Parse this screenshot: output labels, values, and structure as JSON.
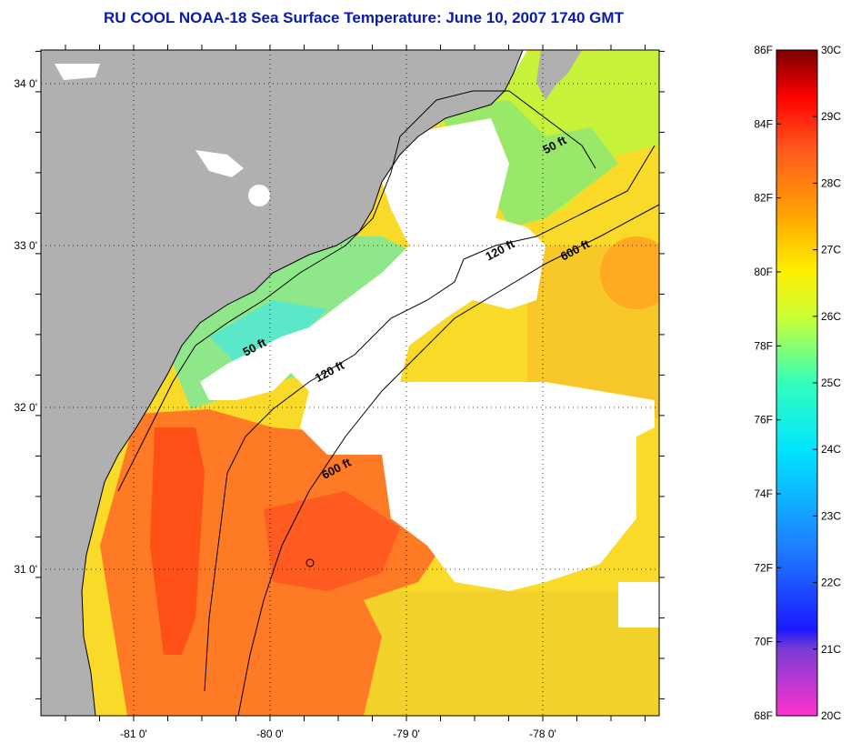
{
  "title": "RU COOL  NOAA-18  Sea Surface Temperature:  June 10, 2007 1740 GMT",
  "map": {
    "lon_ticks": [
      {
        "label": "-81 0'",
        "value": -81
      },
      {
        "label": "-80 0'",
        "value": -80
      },
      {
        "label": "-79 0'",
        "value": -79
      },
      {
        "label": "-78 0'",
        "value": -78
      }
    ],
    "lat_ticks": [
      {
        "label": "34 0'",
        "value": 34
      },
      {
        "label": "33 0'",
        "value": 33
      },
      {
        "label": "32 0'",
        "value": 32
      },
      {
        "label": "31 0'",
        "value": 31
      }
    ],
    "contour_labels": [
      {
        "text": "50 ft",
        "lon": -77.9,
        "lat": 33.6
      },
      {
        "text": "120 ft",
        "lon": -78.3,
        "lat": 32.95
      },
      {
        "text": "600 ft",
        "lon": -77.75,
        "lat": 32.95
      },
      {
        "text": "50 ft",
        "lon": -80.1,
        "lat": 32.35
      },
      {
        "text": "120 ft",
        "lon": -79.55,
        "lat": 32.2
      },
      {
        "text": "600 ft",
        "lon": -79.5,
        "lat": 31.6
      }
    ],
    "colors": {
      "land": "#b0b0b0",
      "cloud": "#ffffff",
      "contour": "#000000"
    }
  },
  "colorbar": {
    "fahrenheit_labels": [
      "86F",
      "84F",
      "82F",
      "80F",
      "78F",
      "76F",
      "74F",
      "72F",
      "70F",
      "68F"
    ],
    "celsius_labels": [
      "30C",
      "29C",
      "28C",
      "27C",
      "26C",
      "25C",
      "24C",
      "23C",
      "22C",
      "21C",
      "20C"
    ],
    "range_c": [
      20,
      30
    ],
    "stops": [
      {
        "c": 20,
        "color": "#ff33cc"
      },
      {
        "c": 21,
        "color": "#7a3cd6"
      },
      {
        "c": 21.3,
        "color": "#1a1aff"
      },
      {
        "c": 22.5,
        "color": "#1e7dff"
      },
      {
        "c": 24,
        "color": "#00e5ff"
      },
      {
        "c": 25,
        "color": "#33ffbb"
      },
      {
        "c": 26,
        "color": "#ccff33"
      },
      {
        "c": 26.7,
        "color": "#ffee00"
      },
      {
        "c": 27.5,
        "color": "#ffa500"
      },
      {
        "c": 28.5,
        "color": "#ff5a1e"
      },
      {
        "c": 29.3,
        "color": "#ff0000"
      },
      {
        "c": 30,
        "color": "#7a0000"
      }
    ]
  }
}
